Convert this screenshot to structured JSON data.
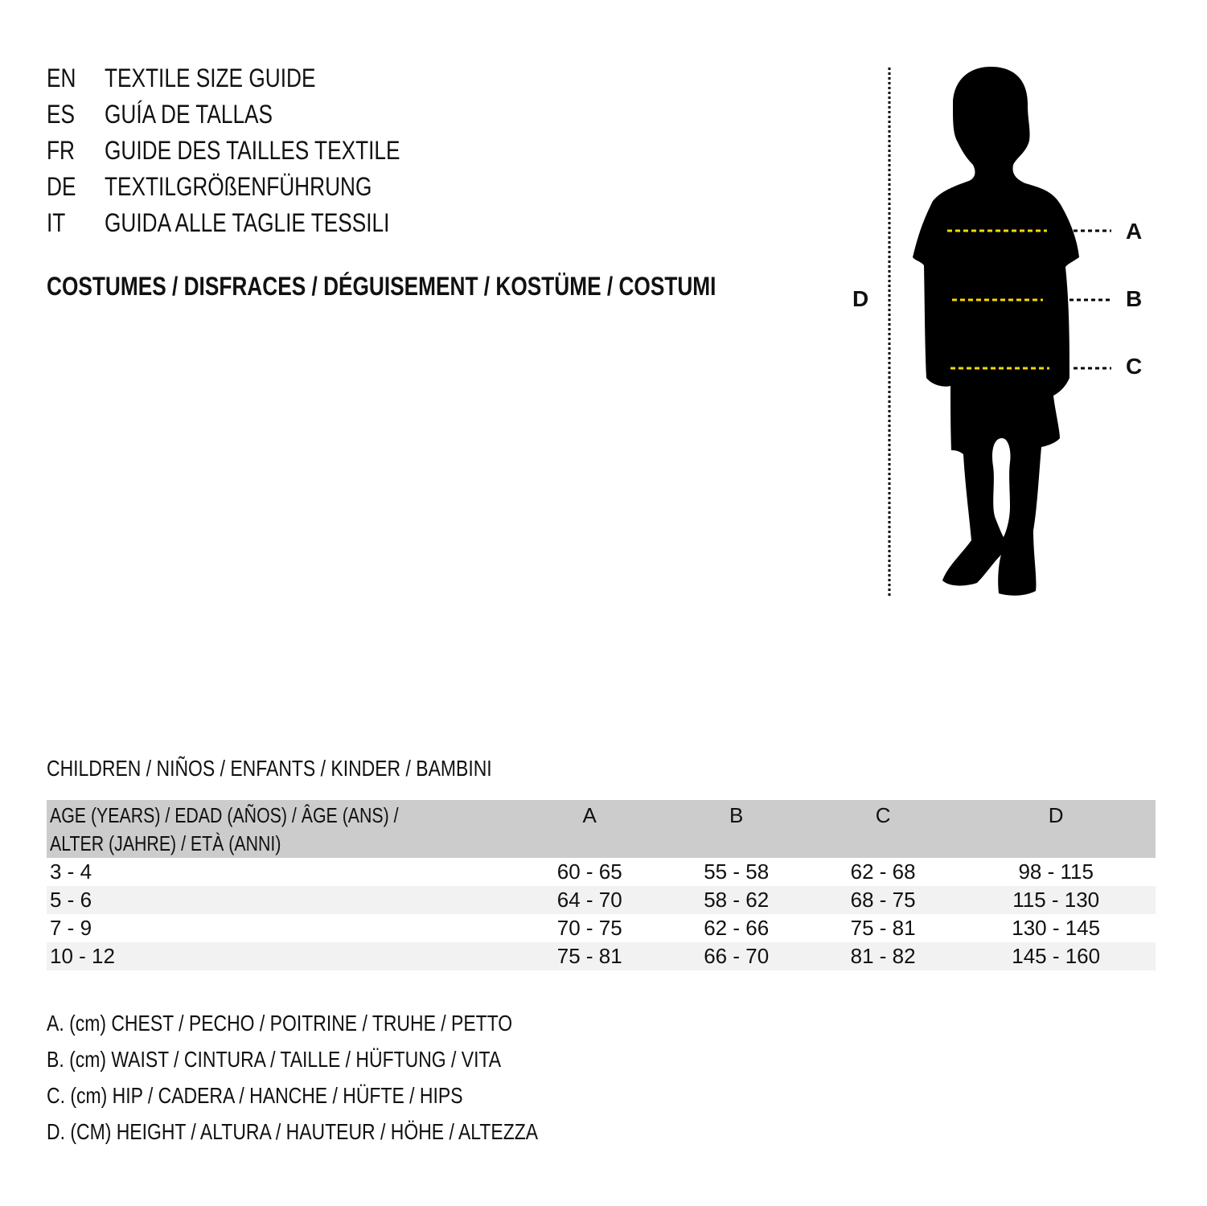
{
  "header": {
    "languages": [
      {
        "code": "EN",
        "title": "TEXTILE SIZE GUIDE"
      },
      {
        "code": "ES",
        "title": "GUÍA DE TALLAS"
      },
      {
        "code": "FR",
        "title": "GUIDE DES TAILLES TEXTILE"
      },
      {
        "code": "DE",
        "title": "TEXTILGRÖßENFÜHRUNG"
      },
      {
        "code": "IT",
        "title": "GUIDA ALLE TAGLIE TESSILI"
      }
    ],
    "category": "COSTUMES / DISFRACES / DÉGUISEMENT / KOSTÜME / COSTUMI"
  },
  "figure": {
    "labels": {
      "a": "A",
      "b": "B",
      "c": "C",
      "d": "D"
    },
    "colors": {
      "silhouette": "#000000",
      "measure_line": "#f5d800"
    }
  },
  "table": {
    "caption": "CHILDREN / NIÑOS / ENFANTS / KINDER / BAMBINI",
    "headers": {
      "age_line1": "AGE (YEARS) / EDAD (AÑOS) / ÂGE (ANS) /",
      "age_line2": "ALTER (JAHRE) / ETÀ (ANNI)",
      "a": "A",
      "b": "B",
      "c": "C",
      "d": "D"
    },
    "rows": [
      {
        "age": "3 - 4",
        "a": "60 - 65",
        "b": "55 - 58",
        "c": "62 - 68",
        "d": "98 - 115"
      },
      {
        "age": "5 - 6",
        "a": "64 - 70",
        "b": "58 - 62",
        "c": "68 - 75",
        "d": "115 - 130"
      },
      {
        "age": "7 - 9",
        "a": "70 - 75",
        "b": "62 - 66",
        "c": "75 - 81",
        "d": "130 - 145"
      },
      {
        "age": "10 - 12",
        "a": "75 - 81",
        "b": "66 - 70",
        "c": "81 - 82",
        "d": "145 - 160"
      }
    ]
  },
  "notes": [
    "A. (cm) CHEST / PECHO / POITRINE / TRUHE / PETTO",
    "B. (cm) WAIST / CINTURA / TAILLE / HÜFTUNG / VITA",
    "C. (cm) HIP / CADERA / HANCHE / HÜFTE / HIPS",
    "D. (CM) HEIGHT / ALTURA / HAUTEUR / HÖHE / ALTEZZA"
  ]
}
